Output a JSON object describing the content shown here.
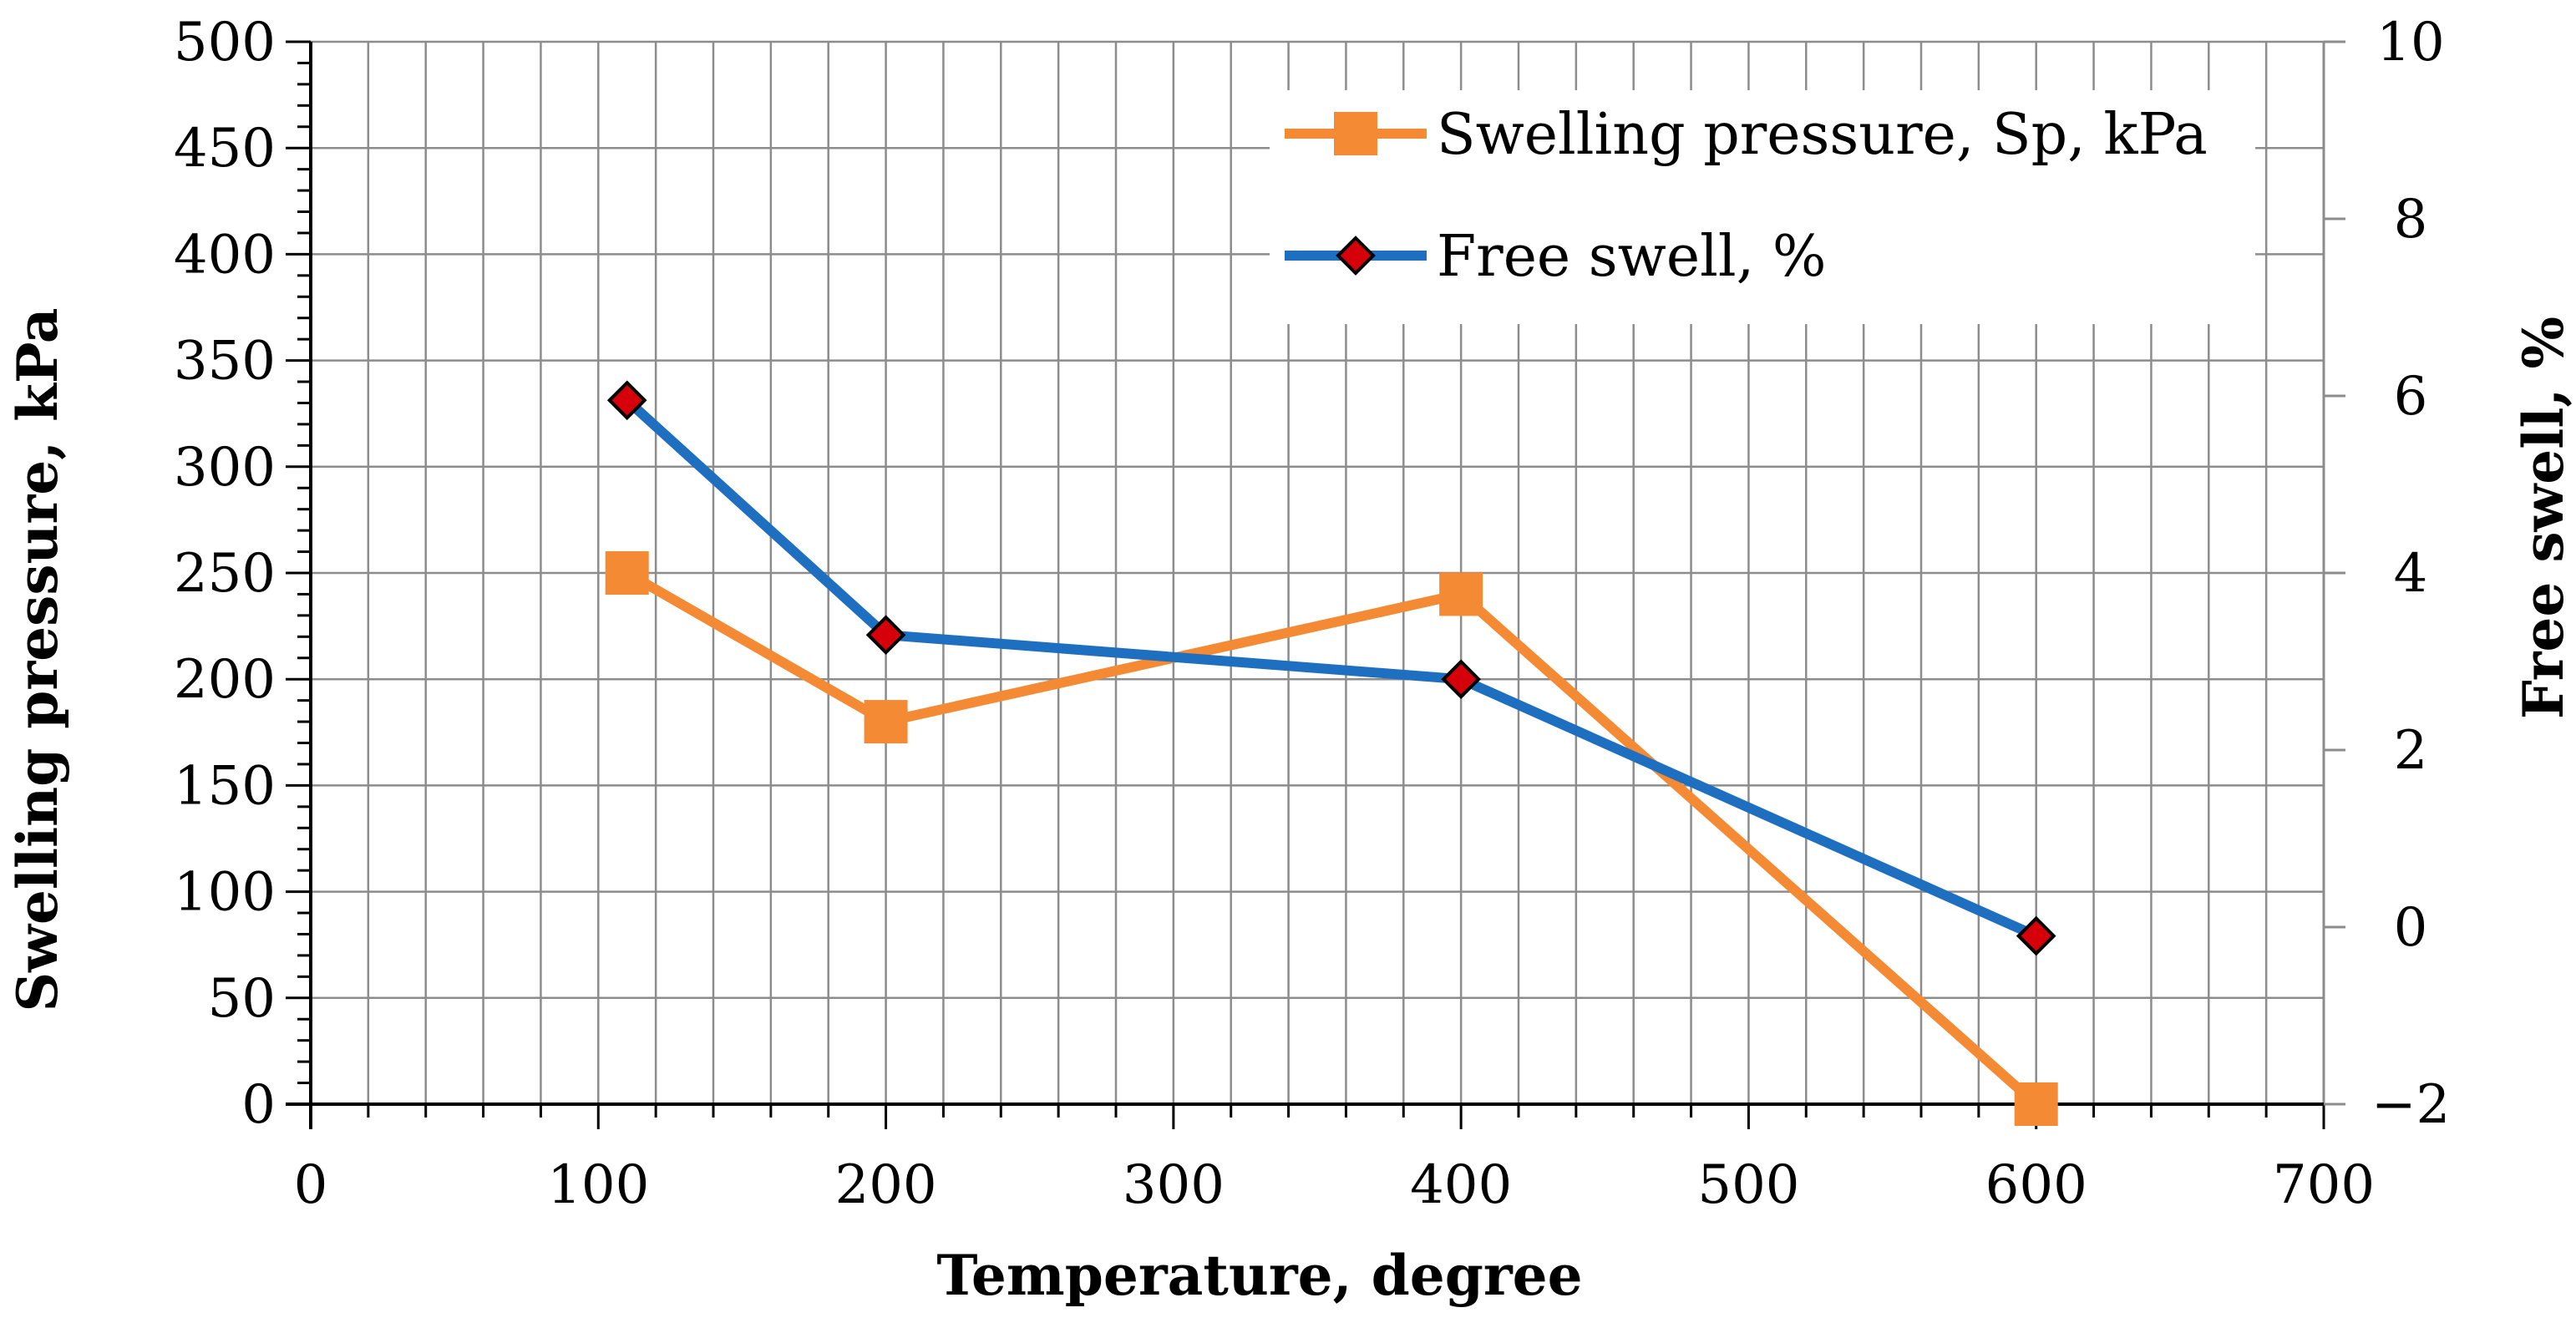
{
  "chart_data": {
    "type": "line",
    "xlabel": "Temperature, degree",
    "ylabel": "Swelling pressure, kPa",
    "y2label": "Free swell, %",
    "xlim": [
      0,
      700
    ],
    "ylim": [
      0,
      500
    ],
    "y2lim": [
      -2,
      10
    ],
    "xticks": [
      0,
      100,
      200,
      300,
      400,
      500,
      600,
      700
    ],
    "yticks": [
      0,
      50,
      100,
      150,
      200,
      250,
      300,
      350,
      400,
      450,
      500
    ],
    "y2ticks": [
      -2,
      0,
      2,
      4,
      6,
      8,
      10
    ],
    "y2tick_labels": [
      "−2",
      "0",
      "2",
      "4",
      "6",
      "8",
      "10"
    ],
    "grid": true,
    "legend": "top-right",
    "series": [
      {
        "name": "Swelling pressure, Sp, kPa",
        "axis": "left",
        "color": "#f58a34",
        "marker": "square",
        "x": [
          110,
          200,
          400,
          600
        ],
        "y": [
          250,
          180,
          240,
          0
        ]
      },
      {
        "name": "Free swell, %",
        "axis": "right",
        "color": "#1f6fc0",
        "marker": "diamond",
        "marker_fill": "#d6000b",
        "x": [
          110,
          200,
          400,
          600
        ],
        "y": [
          5.95,
          3.3,
          2.8,
          -0.1
        ]
      }
    ]
  }
}
